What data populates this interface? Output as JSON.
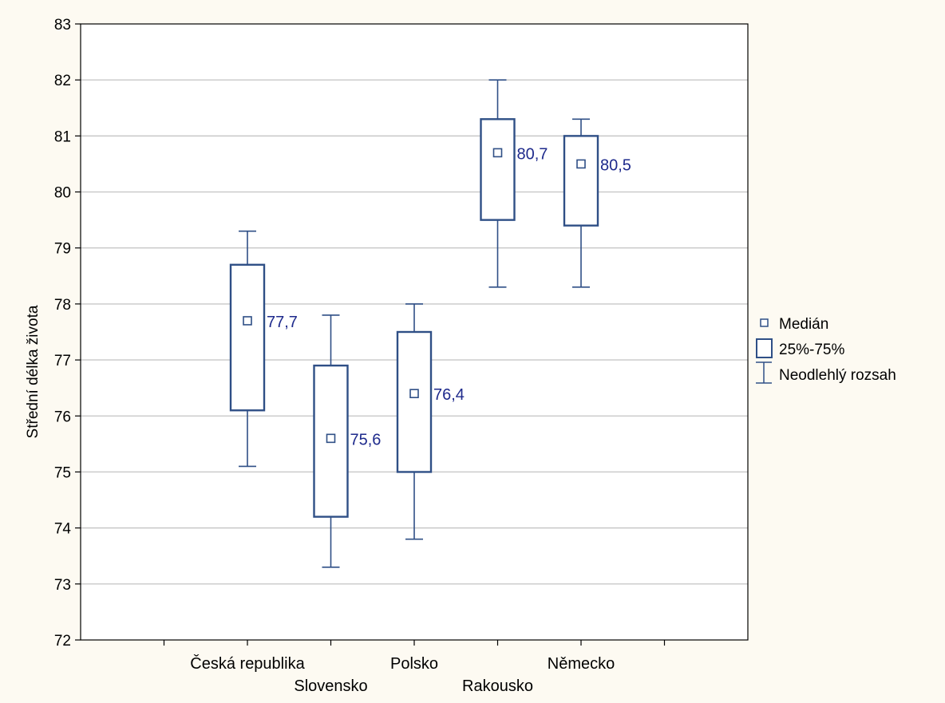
{
  "chart_data": {
    "type": "box",
    "ylabel": "Střední délka života",
    "ylim": [
      72,
      83
    ],
    "yticks": [
      "72",
      "73",
      "74",
      "75",
      "76",
      "77",
      "78",
      "79",
      "80",
      "81",
      "82",
      "83"
    ],
    "grid": true,
    "legend_position": "right",
    "colors": {
      "box": "#2f4f86",
      "label": "#1e2a8c",
      "grid": "#c8c8c8",
      "background": "#fdfaf2",
      "plot": "#ffffff"
    },
    "categories": [
      {
        "name": "Česká republika",
        "whisker_low": 75.1,
        "q1": 76.1,
        "median": 77.7,
        "q3": 78.7,
        "whisker_high": 79.3,
        "median_label": "77,7"
      },
      {
        "name": "Slovensko",
        "whisker_low": 73.3,
        "q1": 74.2,
        "median": 75.6,
        "q3": 76.9,
        "whisker_high": 77.8,
        "median_label": "75,6"
      },
      {
        "name": "Polsko",
        "whisker_low": 73.8,
        "q1": 75.0,
        "median": 76.4,
        "q3": 77.5,
        "whisker_high": 78.0,
        "median_label": "76,4"
      },
      {
        "name": "Rakousko",
        "whisker_low": 78.3,
        "q1": 79.5,
        "median": 80.7,
        "q3": 81.3,
        "whisker_high": 82.0,
        "median_label": "80,7"
      },
      {
        "name": "Německo",
        "whisker_low": 78.3,
        "q1": 79.4,
        "median": 80.5,
        "q3": 81.0,
        "whisker_high": 81.3,
        "median_label": "80,5"
      }
    ],
    "legend": [
      {
        "symbol": "median-marker",
        "label": "Medián"
      },
      {
        "symbol": "box",
        "label": "25%-75%"
      },
      {
        "symbol": "whisker",
        "label": "Neodlehlý rozsah"
      }
    ]
  }
}
